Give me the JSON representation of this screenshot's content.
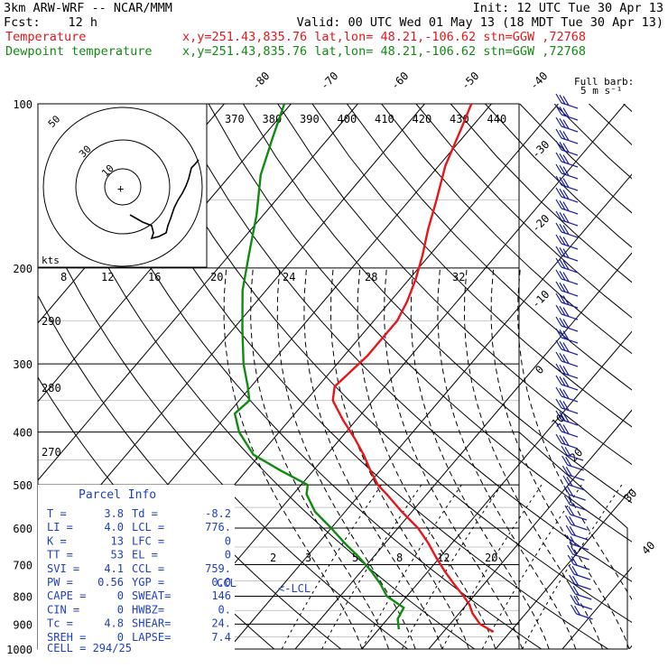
{
  "header": {
    "model": "3km ARW-WRF -- NCAR/MMM",
    "init": "Init: 12 UTC Tue 30 Apr 13",
    "fcst_label": "Fcst:",
    "fcst_value": "12 h",
    "valid": "Valid: 00 UTC Wed 01 May 13 (18 MDT Tue 30 Apr 13)",
    "temp_title": "Temperature",
    "temp_loc": "x,y=251.43,835.76   lat,lon= 48.21,-106.62  stn=GGW ,72768",
    "dew_title": "Dewpoint temperature",
    "dew_loc": "x,y=251.43,835.76   lat,lon= 48.21,-106.62  stn=GGW ,72768"
  },
  "colors": {
    "temperature": "#e8161b",
    "dewpoint": "#128a12",
    "wind": "#1a1f9a",
    "panel_text": "#1f3fbf",
    "grid": "#000000"
  },
  "full_barb_label": [
    "Full barb:",
    "5 m s⁻¹"
  ],
  "hodograph": {
    "speed_unit": "kts",
    "ring_labels": [
      "10",
      "30",
      "50"
    ],
    "center_mark": "+"
  },
  "panel": {
    "title": "Parcel Info",
    "rows": [
      {
        "l": "T  =",
        "lv": "3.8",
        "r": "Td =",
        "rv": "-8.2"
      },
      {
        "l": "LI =",
        "lv": "4.0",
        "r": "LCL =",
        "rv": "776."
      },
      {
        "l": "K  =",
        "lv": "13",
        "r": "LFC =",
        "rv": "0"
      },
      {
        "l": "TT =",
        "lv": "53",
        "r": "EL  =",
        "rv": "0"
      },
      {
        "l": "SVI =",
        "lv": "4.1",
        "r": "CCL =",
        "rv": "759."
      },
      {
        "l": "PW =",
        "lv": "0.56",
        "r": "YGP =",
        "rv": "0.0"
      },
      {
        "l": "CAPE =",
        "lv": "0",
        "r": "SWEAT=",
        "rv": "146"
      },
      {
        "l": "CIN =",
        "lv": "0",
        "r": "HWBZ=",
        "rv": "0."
      },
      {
        "l": "Tc  =",
        "lv": "4.8",
        "r": "SHEAR=",
        "rv": "24."
      },
      {
        "l": "SREH =",
        "lv": "0",
        "r": "LAPSE=",
        "rv": "7.4"
      }
    ],
    "cell": "CELL = 294/25",
    "ccl_label": "CCL",
    "lcl_label": "<-LCL"
  },
  "chart_data": {
    "type": "line",
    "title": "",
    "pressure_ticks": [
      100,
      200,
      300,
      400,
      500,
      600,
      700,
      800,
      900,
      1000
    ],
    "pressure_unit": "hPa",
    "isotherm_labels": [
      -80,
      -70,
      -60,
      -50,
      -40,
      -30,
      -20,
      -10,
      0,
      10,
      20,
      30,
      40
    ],
    "theta_labels": [
      370,
      380,
      390,
      400,
      410,
      420,
      430,
      440
    ],
    "theta_side_labels": [
      290,
      280,
      270
    ],
    "mixing_ratio_labels_upper": [
      8,
      12,
      16,
      20,
      24,
      28,
      32
    ],
    "mixing_ratio_labels_lower": [
      2,
      3,
      5,
      8,
      12,
      20
    ],
    "series": [
      {
        "name": "Temperature",
        "points": [
          [
            930,
            7.5
          ],
          [
            900,
            4.5
          ],
          [
            860,
            2.0
          ],
          [
            830,
            0.5
          ],
          [
            800,
            -1.5
          ],
          [
            760,
            -4.5
          ],
          [
            720,
            -7.5
          ],
          [
            680,
            -10.5
          ],
          [
            640,
            -13.5
          ],
          [
            600,
            -17.0
          ],
          [
            560,
            -21.5
          ],
          [
            520,
            -26.0
          ],
          [
            500,
            -28.5
          ],
          [
            470,
            -31.5
          ],
          [
            440,
            -34.5
          ],
          [
            410,
            -38.0
          ],
          [
            380,
            -42.0
          ],
          [
            350,
            -46.0
          ],
          [
            330,
            -47.5
          ],
          [
            310,
            -47.0
          ],
          [
            290,
            -46.5
          ],
          [
            270,
            -46.5
          ],
          [
            250,
            -46.5
          ],
          [
            230,
            -47.5
          ],
          [
            210,
            -49.0
          ],
          [
            190,
            -51.0
          ],
          [
            170,
            -53.5
          ],
          [
            150,
            -56.0
          ],
          [
            130,
            -59.0
          ],
          [
            110,
            -61.5
          ],
          [
            100,
            -63.0
          ]
        ]
      },
      {
        "name": "Dewpoint temperature",
        "points": [
          [
            920,
            -7.0
          ],
          [
            880,
            -8.5
          ],
          [
            840,
            -9.0
          ],
          [
            800,
            -13.0
          ],
          [
            760,
            -15.5
          ],
          [
            720,
            -18.5
          ],
          [
            680,
            -22.0
          ],
          [
            640,
            -26.0
          ],
          [
            600,
            -30.0
          ],
          [
            560,
            -34.5
          ],
          [
            520,
            -38.0
          ],
          [
            500,
            -39.0
          ],
          [
            470,
            -45.0
          ],
          [
            440,
            -51.0
          ],
          [
            400,
            -56.0
          ],
          [
            370,
            -59.0
          ],
          [
            350,
            -58.5
          ],
          [
            330,
            -60.5
          ],
          [
            300,
            -64.0
          ],
          [
            260,
            -68.5
          ],
          [
            220,
            -73.5
          ],
          [
            190,
            -77.0
          ],
          [
            160,
            -81.0
          ],
          [
            135,
            -85.5
          ],
          [
            115,
            -88.5
          ],
          [
            100,
            -91.0
          ]
        ]
      }
    ]
  }
}
